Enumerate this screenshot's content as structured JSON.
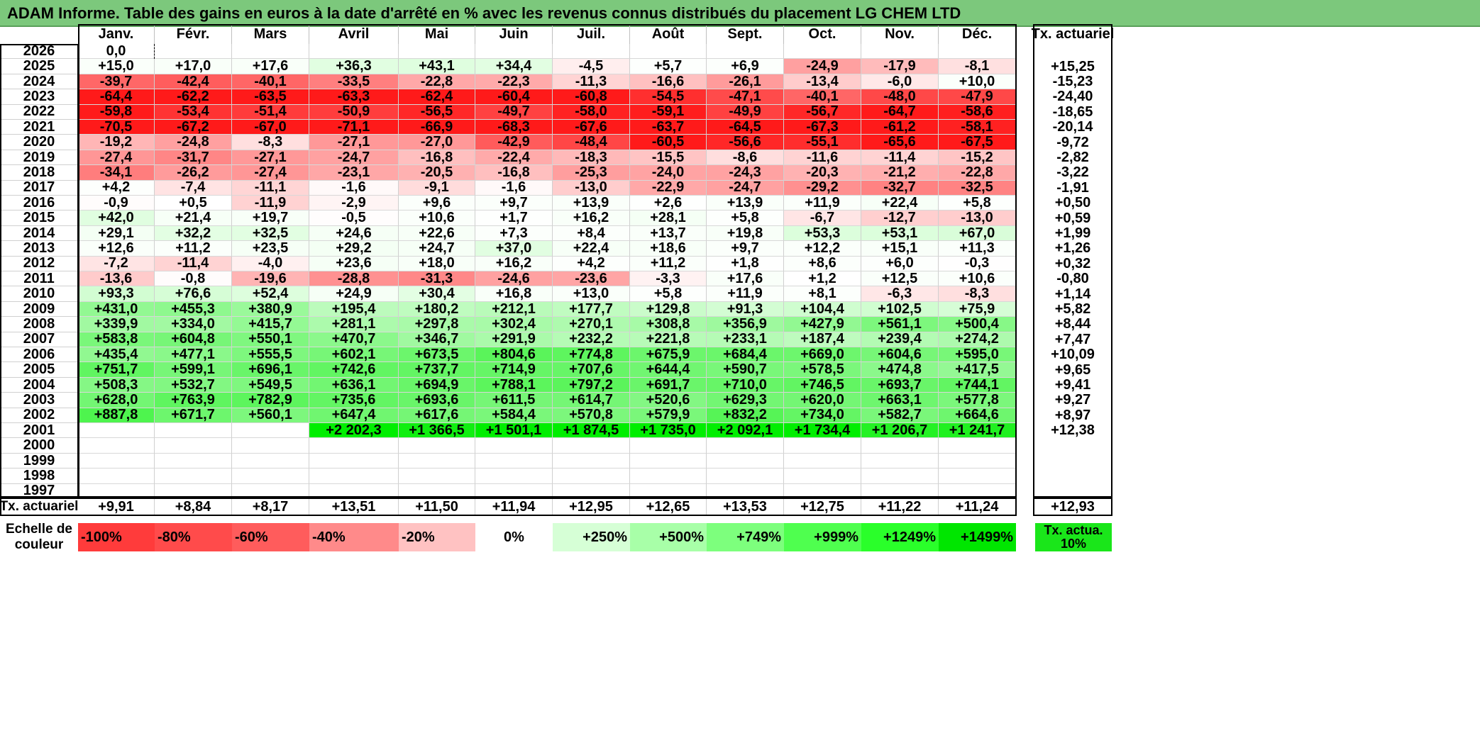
{
  "title": "ADAM Informe. Table des gains en euros à la date d'arrêté en % avec les revenus connus distribués du placement LG CHEM LTD",
  "chart_data": {
    "type": "table",
    "months": [
      "Janv.",
      "Févr.",
      "Mars",
      "Avril",
      "Mai",
      "Juin",
      "Juil.",
      "Août",
      "Sept.",
      "Oct.",
      "Nov.",
      "Déc."
    ],
    "annual_header": "Tx. actuariel",
    "rows": [
      {
        "year": "2026",
        "values": [
          "0,0",
          "",
          "",
          "",
          "",
          "",
          "",
          "",
          "",
          "",
          "",
          ""
        ],
        "annual": ""
      },
      {
        "year": "2025",
        "values": [
          "+15,0",
          "+17,0",
          "+17,6",
          "+36,3",
          "+43,1",
          "+34,4",
          "-4,5",
          "+5,7",
          "+6,9",
          "-24,9",
          "-17,9",
          "-8,1"
        ],
        "annual": "+15,25"
      },
      {
        "year": "2024",
        "values": [
          "-39,7",
          "-42,4",
          "-40,1",
          "-33,5",
          "-22,8",
          "-22,3",
          "-11,3",
          "-16,6",
          "-26,1",
          "-13,4",
          "-6,0",
          "+10,0"
        ],
        "annual": "-15,23"
      },
      {
        "year": "2023",
        "values": [
          "-64,4",
          "-62,2",
          "-63,5",
          "-63,3",
          "-62,4",
          "-60,4",
          "-60,8",
          "-54,5",
          "-47,1",
          "-40,1",
          "-48,0",
          "-47,9"
        ],
        "annual": "-24,40"
      },
      {
        "year": "2022",
        "values": [
          "-59,8",
          "-53,4",
          "-51,4",
          "-50,9",
          "-56,5",
          "-49,7",
          "-58,0",
          "-59,1",
          "-49,9",
          "-56,7",
          "-64,7",
          "-58,6"
        ],
        "annual": "-18,65"
      },
      {
        "year": "2021",
        "values": [
          "-70,5",
          "-67,2",
          "-67,0",
          "-71,1",
          "-66,9",
          "-68,3",
          "-67,6",
          "-63,7",
          "-64,5",
          "-67,3",
          "-61,2",
          "-58,1"
        ],
        "annual": "-20,14"
      },
      {
        "year": "2020",
        "values": [
          "-19,2",
          "-24,8",
          "-8,3",
          "-27,1",
          "-27,0",
          "-42,9",
          "-48,4",
          "-60,5",
          "-56,6",
          "-55,1",
          "-65,6",
          "-67,5"
        ],
        "annual": "-9,72"
      },
      {
        "year": "2019",
        "values": [
          "-27,4",
          "-31,7",
          "-27,1",
          "-24,7",
          "-16,8",
          "-22,4",
          "-18,3",
          "-15,5",
          "-8,6",
          "-11,6",
          "-11,4",
          "-15,2"
        ],
        "annual": "-2,82"
      },
      {
        "year": "2018",
        "values": [
          "-34,1",
          "-26,2",
          "-27,4",
          "-23,1",
          "-20,5",
          "-16,8",
          "-25,3",
          "-24,0",
          "-24,3",
          "-20,3",
          "-21,2",
          "-22,8"
        ],
        "annual": "-3,22"
      },
      {
        "year": "2017",
        "values": [
          "+4,2",
          "-7,4",
          "-11,1",
          "-1,6",
          "-9,1",
          "-1,6",
          "-13,0",
          "-22,9",
          "-24,7",
          "-29,2",
          "-32,7",
          "-32,5"
        ],
        "annual": "-1,91"
      },
      {
        "year": "2016",
        "values": [
          "-0,9",
          "+0,5",
          "-11,9",
          "-2,9",
          "+9,6",
          "+9,7",
          "+13,9",
          "+2,6",
          "+13,9",
          "+11,9",
          "+22,4",
          "+5,8"
        ],
        "annual": "+0,50"
      },
      {
        "year": "2015",
        "values": [
          "+42,0",
          "+21,4",
          "+19,7",
          "-0,5",
          "+10,6",
          "+1,7",
          "+16,2",
          "+28,1",
          "+5,8",
          "-6,7",
          "-12,7",
          "-13,0"
        ],
        "annual": "+0,59"
      },
      {
        "year": "2014",
        "values": [
          "+29,1",
          "+32,2",
          "+32,5",
          "+24,6",
          "+22,6",
          "+7,3",
          "+8,4",
          "+13,7",
          "+19,8",
          "+53,3",
          "+53,1",
          "+67,0"
        ],
        "annual": "+1,99"
      },
      {
        "year": "2013",
        "values": [
          "+12,6",
          "+11,2",
          "+23,5",
          "+29,2",
          "+24,7",
          "+37,0",
          "+22,4",
          "+18,6",
          "+9,7",
          "+12,2",
          "+15,1",
          "+11,3"
        ],
        "annual": "+1,26"
      },
      {
        "year": "2012",
        "values": [
          "-7,2",
          "-11,4",
          "-4,0",
          "+23,6",
          "+18,0",
          "+16,2",
          "+4,2",
          "+11,2",
          "+1,8",
          "+8,6",
          "+6,0",
          "-0,3"
        ],
        "annual": "+0,32"
      },
      {
        "year": "2011",
        "values": [
          "-13,6",
          "-0,8",
          "-19,6",
          "-28,8",
          "-31,3",
          "-24,6",
          "-23,6",
          "-3,3",
          "+17,6",
          "+1,2",
          "+12,5",
          "+10,6"
        ],
        "annual": "-0,80"
      },
      {
        "year": "2010",
        "values": [
          "+93,3",
          "+76,6",
          "+52,4",
          "+24,9",
          "+30,4",
          "+16,8",
          "+13,0",
          "+5,8",
          "+11,9",
          "+8,1",
          "-6,3",
          "-8,3"
        ],
        "annual": "+1,14"
      },
      {
        "year": "2009",
        "values": [
          "+431,0",
          "+455,3",
          "+380,9",
          "+195,4",
          "+180,2",
          "+212,1",
          "+177,7",
          "+129,8",
          "+91,3",
          "+104,4",
          "+102,5",
          "+75,9"
        ],
        "annual": "+5,82"
      },
      {
        "year": "2008",
        "values": [
          "+339,9",
          "+334,0",
          "+415,7",
          "+281,1",
          "+297,8",
          "+302,4",
          "+270,1",
          "+308,8",
          "+356,9",
          "+427,9",
          "+561,1",
          "+500,4"
        ],
        "annual": "+8,44"
      },
      {
        "year": "2007",
        "values": [
          "+583,8",
          "+604,8",
          "+550,1",
          "+470,7",
          "+346,7",
          "+291,9",
          "+232,2",
          "+221,8",
          "+233,1",
          "+187,4",
          "+239,4",
          "+274,2"
        ],
        "annual": "+7,47"
      },
      {
        "year": "2006",
        "values": [
          "+435,4",
          "+477,1",
          "+555,5",
          "+602,1",
          "+673,5",
          "+804,6",
          "+774,8",
          "+675,9",
          "+684,4",
          "+669,0",
          "+604,6",
          "+595,0"
        ],
        "annual": "+10,09"
      },
      {
        "year": "2005",
        "values": [
          "+751,7",
          "+599,1",
          "+696,1",
          "+742,6",
          "+737,7",
          "+714,9",
          "+707,6",
          "+644,4",
          "+590,7",
          "+578,5",
          "+474,8",
          "+417,5"
        ],
        "annual": "+9,65"
      },
      {
        "year": "2004",
        "values": [
          "+508,3",
          "+532,7",
          "+549,5",
          "+636,1",
          "+694,9",
          "+788,1",
          "+797,2",
          "+691,7",
          "+710,0",
          "+746,5",
          "+693,7",
          "+744,1"
        ],
        "annual": "+9,41"
      },
      {
        "year": "2003",
        "values": [
          "+628,0",
          "+763,9",
          "+782,9",
          "+735,6",
          "+693,6",
          "+611,5",
          "+614,7",
          "+520,6",
          "+629,3",
          "+620,0",
          "+663,1",
          "+577,8"
        ],
        "annual": "+9,27"
      },
      {
        "year": "2002",
        "values": [
          "+887,8",
          "+671,7",
          "+560,1",
          "+647,4",
          "+617,6",
          "+584,4",
          "+570,8",
          "+579,9",
          "+832,2",
          "+734,0",
          "+582,7",
          "+664,6"
        ],
        "annual": "+8,97"
      },
      {
        "year": "2001",
        "values": [
          "",
          "",
          "",
          "+2 202,3",
          "+1 366,5",
          "+1 501,1",
          "+1 874,5",
          "+1 735,0",
          "+2 092,1",
          "+1 734,4",
          "+1 206,7",
          "+1 241,7"
        ],
        "annual": "+12,38"
      },
      {
        "year": "2000",
        "values": [
          "",
          "",
          "",
          "",
          "",
          "",
          "",
          "",
          "",
          "",
          "",
          ""
        ],
        "annual": ""
      },
      {
        "year": "1999",
        "values": [
          "",
          "",
          "",
          "",
          "",
          "",
          "",
          "",
          "",
          "",
          "",
          ""
        ],
        "annual": ""
      },
      {
        "year": "1998",
        "values": [
          "",
          "",
          "",
          "",
          "",
          "",
          "",
          "",
          "",
          "",
          "",
          ""
        ],
        "annual": ""
      },
      {
        "year": "1997",
        "values": [
          "",
          "",
          "",
          "",
          "",
          "",
          "",
          "",
          "",
          "",
          "",
          ""
        ],
        "annual": ""
      }
    ],
    "footer": {
      "label": "Tx. actuariel",
      "values": [
        "+9,91",
        "+8,84",
        "+8,17",
        "+13,51",
        "+11,50",
        "+11,94",
        "+12,95",
        "+12,65",
        "+13,53",
        "+12,75",
        "+11,22",
        "+11,24"
      ],
      "annual": "+12,93"
    },
    "legend": {
      "label": "Echelle de couleur",
      "items": [
        {
          "text": "-100%",
          "color": "#ff3b3b",
          "align": "left"
        },
        {
          "text": "-80%",
          "color": "#ff4b4b",
          "align": "left"
        },
        {
          "text": "-60%",
          "color": "#ff5c5c",
          "align": "left"
        },
        {
          "text": "-40%",
          "color": "#ff8a8a",
          "align": "left"
        },
        {
          "text": "-20%",
          "color": "#ffc2c2",
          "align": "left"
        },
        {
          "text": "0%",
          "color": "#ffffff",
          "align": "center"
        },
        {
          "text": "+250%",
          "color": "#d6ffd6",
          "align": "right"
        },
        {
          "text": "+500%",
          "color": "#a8ffa8",
          "align": "right"
        },
        {
          "text": "+749%",
          "color": "#7dff7d",
          "align": "right"
        },
        {
          "text": "+999%",
          "color": "#4fff4f",
          "align": "right"
        },
        {
          "text": "+1249%",
          "color": "#2aff2a",
          "align": "right"
        },
        {
          "text": "+1499%",
          "color": "#00e600",
          "align": "right"
        }
      ],
      "annual_legend": {
        "text": "Tx. actua. 10%",
        "color": "#1ae61a"
      }
    }
  }
}
